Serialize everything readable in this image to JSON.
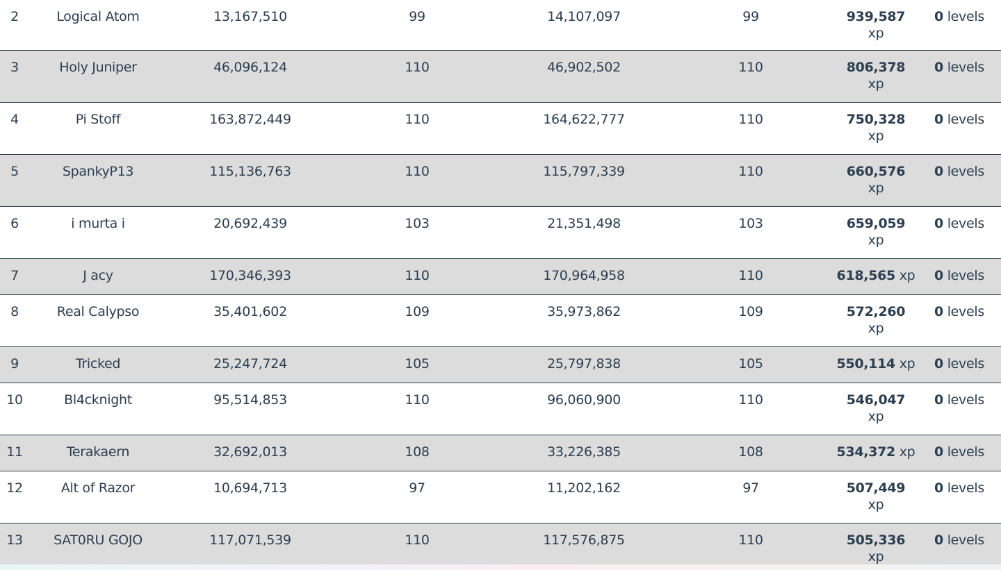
{
  "rows": [
    {
      "rank": "2",
      "name": "Logical Atom",
      "start_xp": "13,167,510",
      "start_level": "99",
      "end_xp": "14,107,097",
      "end_level": "99",
      "xp_gained": "939,587",
      "xp_unit": "xp",
      "levels_gained": "0",
      "levels_unit": "levels"
    },
    {
      "rank": "3",
      "name": "Holy Juniper",
      "start_xp": "46,096,124",
      "start_level": "110",
      "end_xp": "46,902,502",
      "end_level": "110",
      "xp_gained": "806,378",
      "xp_unit": "xp",
      "levels_gained": "0",
      "levels_unit": "levels"
    },
    {
      "rank": "4",
      "name": "Pi Stoff",
      "start_xp": "163,872,449",
      "start_level": "110",
      "end_xp": "164,622,777",
      "end_level": "110",
      "xp_gained": "750,328",
      "xp_unit": "xp",
      "levels_gained": "0",
      "levels_unit": "levels"
    },
    {
      "rank": "5",
      "name": "SpankyP13",
      "start_xp": "115,136,763",
      "start_level": "110",
      "end_xp": "115,797,339",
      "end_level": "110",
      "xp_gained": "660,576",
      "xp_unit": "xp",
      "levels_gained": "0",
      "levels_unit": "levels"
    },
    {
      "rank": "6",
      "name": "i murta i",
      "start_xp": "20,692,439",
      "start_level": "103",
      "end_xp": "21,351,498",
      "end_level": "103",
      "xp_gained": "659,059",
      "xp_unit": "xp",
      "levels_gained": "0",
      "levels_unit": "levels"
    },
    {
      "rank": "7",
      "name": "J acy",
      "start_xp": "170,346,393",
      "start_level": "110",
      "end_xp": "170,964,958",
      "end_level": "110",
      "xp_gained": "618,565",
      "xp_unit": "xp",
      "levels_gained": "0",
      "levels_unit": "levels"
    },
    {
      "rank": "8",
      "name": "Real Calypso",
      "start_xp": "35,401,602",
      "start_level": "109",
      "end_xp": "35,973,862",
      "end_level": "109",
      "xp_gained": "572,260",
      "xp_unit": "xp",
      "levels_gained": "0",
      "levels_unit": "levels"
    },
    {
      "rank": "9",
      "name": "Tricked",
      "start_xp": "25,247,724",
      "start_level": "105",
      "end_xp": "25,797,838",
      "end_level": "105",
      "xp_gained": "550,114",
      "xp_unit": "xp",
      "levels_gained": "0",
      "levels_unit": "levels"
    },
    {
      "rank": "10",
      "name": "Bl4cknight",
      "start_xp": "95,514,853",
      "start_level": "110",
      "end_xp": "96,060,900",
      "end_level": "110",
      "xp_gained": "546,047",
      "xp_unit": "xp",
      "levels_gained": "0",
      "levels_unit": "levels"
    },
    {
      "rank": "11",
      "name": "Terakaern",
      "start_xp": "32,692,013",
      "start_level": "108",
      "end_xp": "33,226,385",
      "end_level": "108",
      "xp_gained": "534,372",
      "xp_unit": "xp",
      "levels_gained": "0",
      "levels_unit": "levels"
    },
    {
      "rank": "12",
      "name": "Alt of Razor",
      "start_xp": "10,694,713",
      "start_level": "97",
      "end_xp": "11,202,162",
      "end_level": "97",
      "xp_gained": "507,449",
      "xp_unit": "xp",
      "levels_gained": "0",
      "levels_unit": "levels"
    },
    {
      "rank": "13",
      "name": "SAT0RU GOJO",
      "start_xp": "117,071,539",
      "start_level": "110",
      "end_xp": "117,576,875",
      "end_level": "110",
      "xp_gained": "505,336",
      "xp_unit": "xp",
      "levels_gained": "0",
      "levels_unit": "levels"
    }
  ],
  "colors": {
    "text": "#2c3e50",
    "row_alt_background": "#dcdcdc",
    "row_background": "#ffffff",
    "divider": "#2c3e50"
  }
}
